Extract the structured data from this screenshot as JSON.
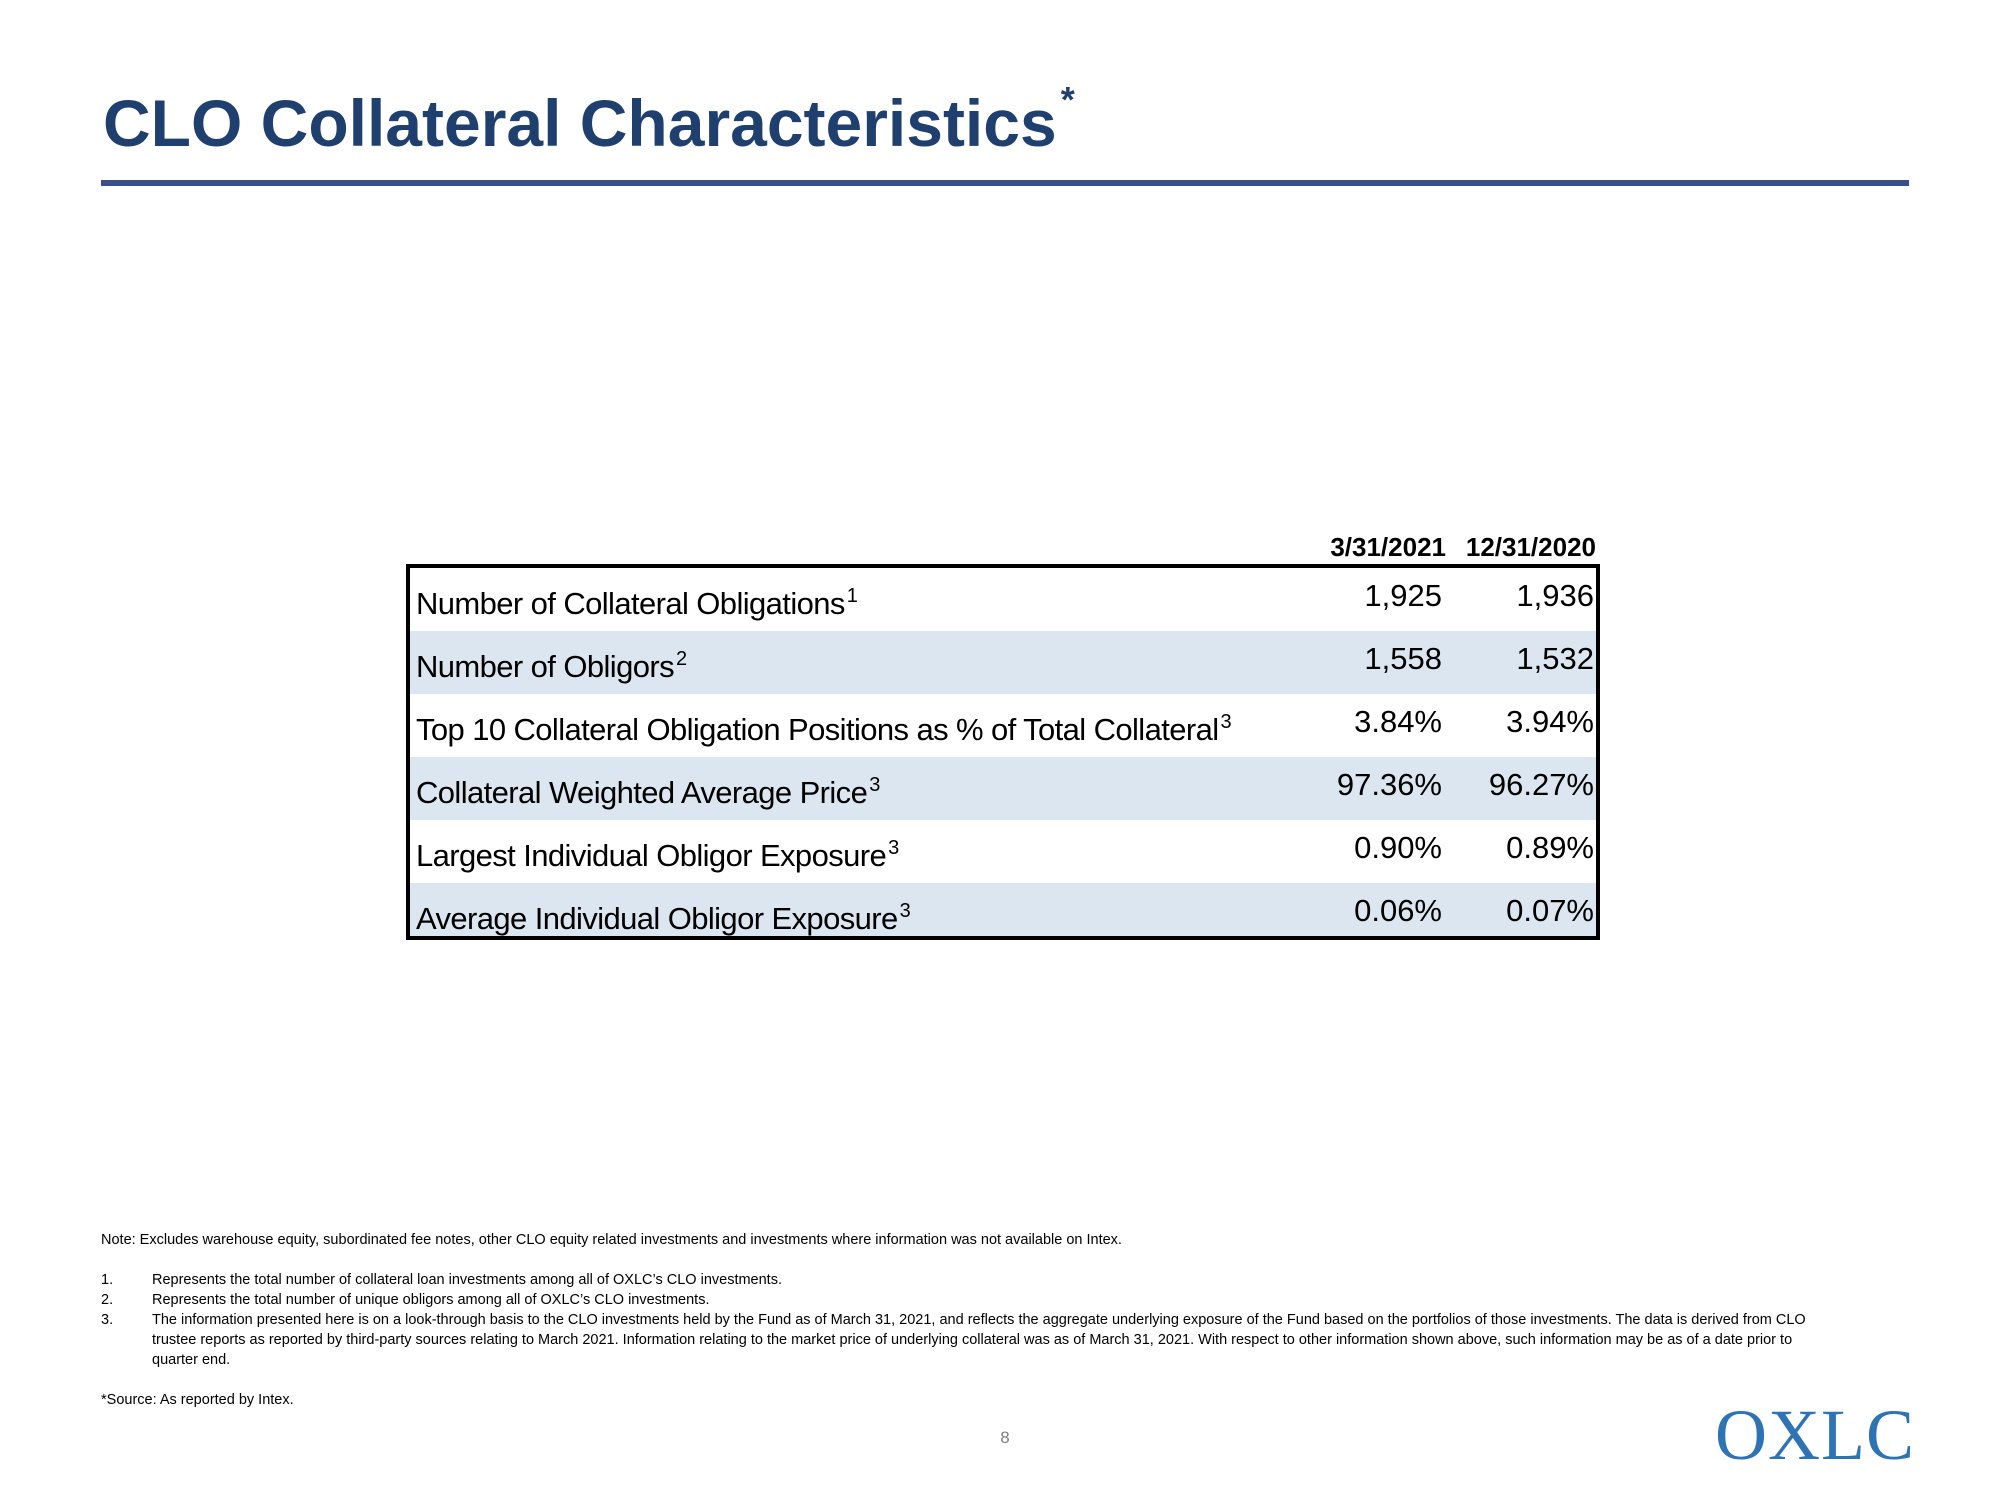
{
  "header": {
    "title": "CLO Collateral Characteristics",
    "title_marker": "*"
  },
  "table": {
    "columns": [
      "3/31/2021",
      "12/31/2020"
    ],
    "rows": [
      {
        "label": "Number of Collateral Obligations",
        "footnote": "1",
        "values": [
          "1,925",
          "1,936"
        ]
      },
      {
        "label": "Number of Obligors",
        "footnote": "2",
        "values": [
          "1,558",
          "1,532"
        ]
      },
      {
        "label": "Top 10 Collateral Obligation Positions as % of Total Collateral",
        "footnote": "3",
        "values": [
          "3.84%",
          "3.94%"
        ]
      },
      {
        "label": "Collateral Weighted Average Price",
        "footnote": "3",
        "values": [
          "97.36%",
          "96.27%"
        ]
      },
      {
        "label": "Largest Individual Obligor Exposure",
        "footnote": "3",
        "values": [
          "0.90%",
          "0.89%"
        ]
      },
      {
        "label": "Average Individual Obligor Exposure",
        "footnote": "3",
        "values": [
          "0.06%",
          "0.07%"
        ]
      }
    ]
  },
  "notes": {
    "note": "Note: Excludes warehouse equity, subordinated fee notes, other CLO equity related investments and investments where information was not available on Intex.",
    "footnotes": [
      {
        "num": "1.",
        "text": "Represents the total number of collateral loan investments among all of OXLC’s CLO investments."
      },
      {
        "num": "2.",
        "text": "Represents the total number of unique obligors among all of OXLC’s CLO investments."
      },
      {
        "num": "3.",
        "text": "The information presented here is on a look-through basis to the CLO investments held by the Fund as of March 31, 2021, and reflects the aggregate underlying exposure of the Fund based on the portfolios of those investments. The data is derived from CLO trustee reports as reported by third-party sources relating to March 2021. Information relating to the market price of underlying collateral was as of March 31, 2021. With respect to other information shown above, such information may be as of a date prior to quarter end."
      }
    ],
    "source": "*Source: As reported by Intex."
  },
  "footer": {
    "page_number": "8",
    "logo_text": "OXLC"
  },
  "colors": {
    "title": "#1f3f6e",
    "rule": "#3a4f8a",
    "row_shade": "#dce6f0",
    "logo": "#2e74b5"
  }
}
